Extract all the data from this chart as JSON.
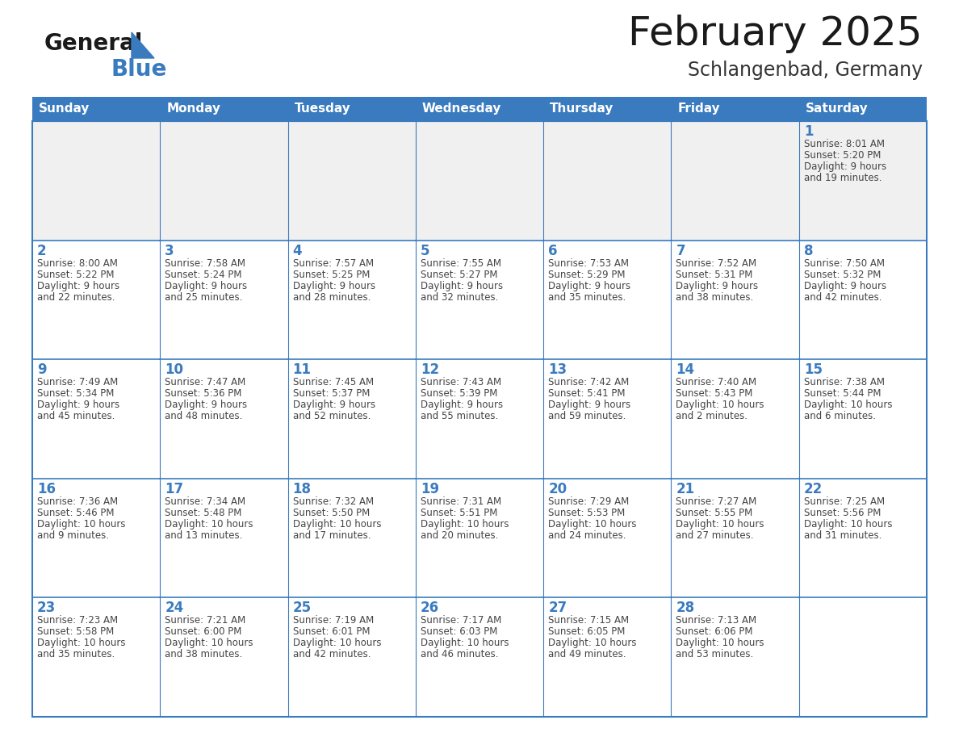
{
  "title": "February 2025",
  "subtitle": "Schlangenbad, Germany",
  "days_of_week": [
    "Sunday",
    "Monday",
    "Tuesday",
    "Wednesday",
    "Thursday",
    "Friday",
    "Saturday"
  ],
  "header_bg": "#3a7bbf",
  "header_text": "#ffffff",
  "cell_bg_white": "#ffffff",
  "cell_bg_gray": "#f0f0f0",
  "border_color": "#3a7bbf",
  "day_number_color": "#3a7bbf",
  "text_color": "#444444",
  "logo_general_color": "#1a1a1a",
  "logo_blue_color": "#3a7bbf",
  "title_color": "#1a1a1a",
  "subtitle_color": "#333333",
  "calendar_data": [
    [
      {
        "day": null,
        "info": ""
      },
      {
        "day": null,
        "info": ""
      },
      {
        "day": null,
        "info": ""
      },
      {
        "day": null,
        "info": ""
      },
      {
        "day": null,
        "info": ""
      },
      {
        "day": null,
        "info": ""
      },
      {
        "day": 1,
        "info": "Sunrise: 8:01 AM\nSunset: 5:20 PM\nDaylight: 9 hours\nand 19 minutes."
      }
    ],
    [
      {
        "day": 2,
        "info": "Sunrise: 8:00 AM\nSunset: 5:22 PM\nDaylight: 9 hours\nand 22 minutes."
      },
      {
        "day": 3,
        "info": "Sunrise: 7:58 AM\nSunset: 5:24 PM\nDaylight: 9 hours\nand 25 minutes."
      },
      {
        "day": 4,
        "info": "Sunrise: 7:57 AM\nSunset: 5:25 PM\nDaylight: 9 hours\nand 28 minutes."
      },
      {
        "day": 5,
        "info": "Sunrise: 7:55 AM\nSunset: 5:27 PM\nDaylight: 9 hours\nand 32 minutes."
      },
      {
        "day": 6,
        "info": "Sunrise: 7:53 AM\nSunset: 5:29 PM\nDaylight: 9 hours\nand 35 minutes."
      },
      {
        "day": 7,
        "info": "Sunrise: 7:52 AM\nSunset: 5:31 PM\nDaylight: 9 hours\nand 38 minutes."
      },
      {
        "day": 8,
        "info": "Sunrise: 7:50 AM\nSunset: 5:32 PM\nDaylight: 9 hours\nand 42 minutes."
      }
    ],
    [
      {
        "day": 9,
        "info": "Sunrise: 7:49 AM\nSunset: 5:34 PM\nDaylight: 9 hours\nand 45 minutes."
      },
      {
        "day": 10,
        "info": "Sunrise: 7:47 AM\nSunset: 5:36 PM\nDaylight: 9 hours\nand 48 minutes."
      },
      {
        "day": 11,
        "info": "Sunrise: 7:45 AM\nSunset: 5:37 PM\nDaylight: 9 hours\nand 52 minutes."
      },
      {
        "day": 12,
        "info": "Sunrise: 7:43 AM\nSunset: 5:39 PM\nDaylight: 9 hours\nand 55 minutes."
      },
      {
        "day": 13,
        "info": "Sunrise: 7:42 AM\nSunset: 5:41 PM\nDaylight: 9 hours\nand 59 minutes."
      },
      {
        "day": 14,
        "info": "Sunrise: 7:40 AM\nSunset: 5:43 PM\nDaylight: 10 hours\nand 2 minutes."
      },
      {
        "day": 15,
        "info": "Sunrise: 7:38 AM\nSunset: 5:44 PM\nDaylight: 10 hours\nand 6 minutes."
      }
    ],
    [
      {
        "day": 16,
        "info": "Sunrise: 7:36 AM\nSunset: 5:46 PM\nDaylight: 10 hours\nand 9 minutes."
      },
      {
        "day": 17,
        "info": "Sunrise: 7:34 AM\nSunset: 5:48 PM\nDaylight: 10 hours\nand 13 minutes."
      },
      {
        "day": 18,
        "info": "Sunrise: 7:32 AM\nSunset: 5:50 PM\nDaylight: 10 hours\nand 17 minutes."
      },
      {
        "day": 19,
        "info": "Sunrise: 7:31 AM\nSunset: 5:51 PM\nDaylight: 10 hours\nand 20 minutes."
      },
      {
        "day": 20,
        "info": "Sunrise: 7:29 AM\nSunset: 5:53 PM\nDaylight: 10 hours\nand 24 minutes."
      },
      {
        "day": 21,
        "info": "Sunrise: 7:27 AM\nSunset: 5:55 PM\nDaylight: 10 hours\nand 27 minutes."
      },
      {
        "day": 22,
        "info": "Sunrise: 7:25 AM\nSunset: 5:56 PM\nDaylight: 10 hours\nand 31 minutes."
      }
    ],
    [
      {
        "day": 23,
        "info": "Sunrise: 7:23 AM\nSunset: 5:58 PM\nDaylight: 10 hours\nand 35 minutes."
      },
      {
        "day": 24,
        "info": "Sunrise: 7:21 AM\nSunset: 6:00 PM\nDaylight: 10 hours\nand 38 minutes."
      },
      {
        "day": 25,
        "info": "Sunrise: 7:19 AM\nSunset: 6:01 PM\nDaylight: 10 hours\nand 42 minutes."
      },
      {
        "day": 26,
        "info": "Sunrise: 7:17 AM\nSunset: 6:03 PM\nDaylight: 10 hours\nand 46 minutes."
      },
      {
        "day": 27,
        "info": "Sunrise: 7:15 AM\nSunset: 6:05 PM\nDaylight: 10 hours\nand 49 minutes."
      },
      {
        "day": 28,
        "info": "Sunrise: 7:13 AM\nSunset: 6:06 PM\nDaylight: 10 hours\nand 53 minutes."
      },
      {
        "day": null,
        "info": ""
      }
    ]
  ]
}
